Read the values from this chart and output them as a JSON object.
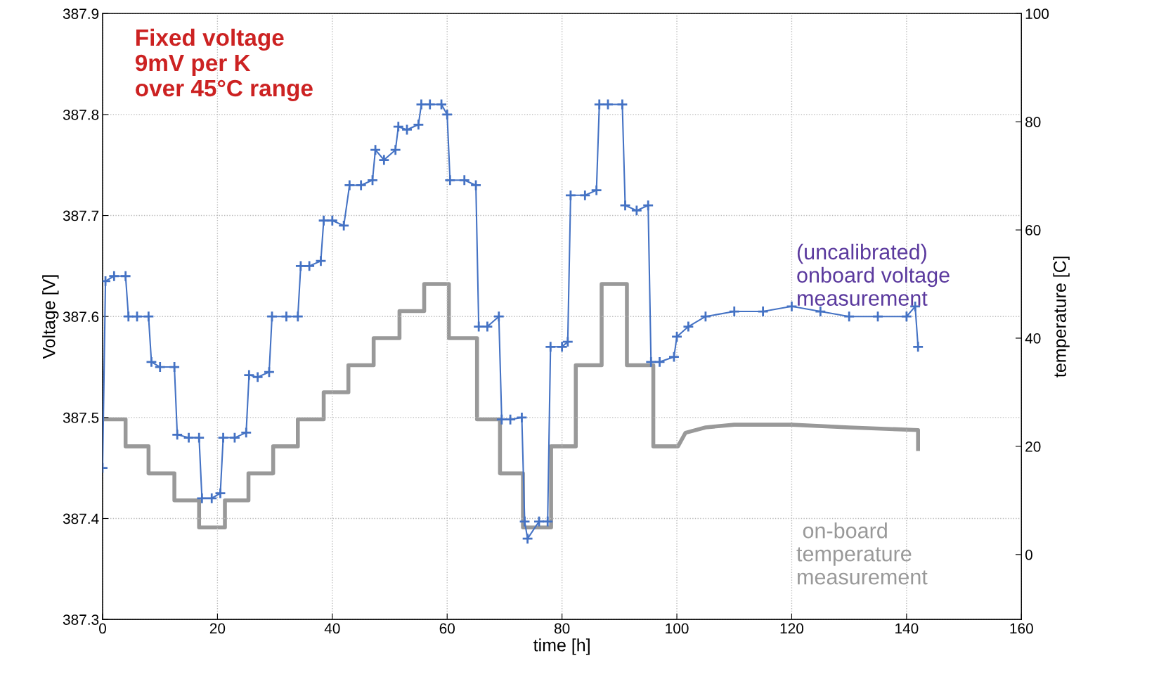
{
  "chart_data": {
    "type": "line",
    "xlabel": "time [h]",
    "ylabel": "Voltage [V]",
    "y2label": "temperature [C]",
    "xlim": [
      0,
      160
    ],
    "xticks": [
      0,
      20,
      40,
      60,
      80,
      100,
      120,
      140,
      160
    ],
    "ylim": [
      387.3,
      387.9
    ],
    "yticks": [
      387.3,
      387.4,
      387.5,
      387.6,
      387.7,
      387.8,
      387.9
    ],
    "y2lim": [
      -12,
      100
    ],
    "y2ticks": [
      0,
      20,
      40,
      60,
      80,
      100
    ],
    "grid": true,
    "legend": false,
    "annotations": [
      "Fixed voltage\n9mV per K\nover 45°C range"
    ],
    "series": [
      {
        "name": "(uncalibrated)\nonboard voltage\nmeasurement",
        "color": "#4472c4",
        "marker": "cross",
        "axis": "y",
        "x": [
          0,
          0.5,
          2,
          4,
          4.5,
          6,
          8,
          8.5,
          10,
          12.5,
          13,
          15,
          16.8,
          17.3,
          19,
          20.5,
          21,
          23,
          25,
          25.5,
          27,
          29,
          29.5,
          32,
          34,
          34.5,
          36,
          38,
          38.5,
          40,
          42,
          43,
          45,
          47,
          47.5,
          49,
          51,
          51.5,
          53,
          55,
          55.5,
          57,
          59,
          60,
          60.5,
          63,
          65,
          65.5,
          67,
          69,
          69.5,
          71,
          73,
          73.5,
          74,
          76,
          77.5,
          78,
          80,
          81,
          81.5,
          84,
          86,
          86.5,
          88,
          90.5,
          91,
          93,
          95,
          95.5,
          97,
          99.5,
          100,
          102,
          105,
          110,
          115,
          120,
          125,
          130,
          135,
          140,
          141.5,
          142
        ],
        "values": [
          387.45,
          387.635,
          387.64,
          387.64,
          387.6,
          387.6,
          387.6,
          387.555,
          387.55,
          387.55,
          387.483,
          387.48,
          387.48,
          387.42,
          387.42,
          387.425,
          387.48,
          387.48,
          387.485,
          387.542,
          387.54,
          387.545,
          387.6,
          387.6,
          387.6,
          387.65,
          387.65,
          387.655,
          387.695,
          387.695,
          387.69,
          387.73,
          387.73,
          387.735,
          387.765,
          387.755,
          387.765,
          387.788,
          387.785,
          387.79,
          387.81,
          387.81,
          387.81,
          387.8,
          387.735,
          387.735,
          387.73,
          387.59,
          387.59,
          387.6,
          387.498,
          387.498,
          387.5,
          387.397,
          387.38,
          387.397,
          387.397,
          387.57,
          387.57,
          387.575,
          387.72,
          387.72,
          387.725,
          387.81,
          387.81,
          387.81,
          387.71,
          387.705,
          387.71,
          387.555,
          387.555,
          387.56,
          387.58,
          387.59,
          387.6,
          387.605,
          387.605,
          387.61,
          387.605,
          387.6,
          387.6,
          387.6,
          387.61,
          387.57
        ]
      },
      {
        "name": " on-board\ntemperature\nmeasurement",
        "color": "#999999",
        "marker": "none",
        "axis": "y2",
        "x": [
          0,
          4,
          4,
          8,
          8,
          12.5,
          12.5,
          16.8,
          16.8,
          21.3,
          21.3,
          25.4,
          25.4,
          29.7,
          29.7,
          34,
          34,
          38.5,
          38.5,
          42.8,
          42.8,
          47.2,
          47.2,
          51.7,
          51.7,
          56,
          56,
          60.3,
          60.3,
          65.2,
          65.2,
          69.2,
          69.2,
          73.2,
          73.2,
          78.1,
          78.1,
          82.4,
          82.4,
          86.9,
          86.9,
          91.3,
          91.3,
          95.9,
          95.9,
          100.2,
          101.5,
          105,
          110,
          120,
          130,
          142,
          142
        ],
        "values": [
          25,
          25,
          20,
          20,
          15,
          15,
          10,
          10,
          5,
          5,
          10,
          10,
          15,
          15,
          20,
          20,
          25,
          25,
          30,
          30,
          35,
          35,
          40,
          40,
          45,
          45,
          50,
          50,
          40,
          40,
          25,
          25,
          15,
          15,
          5,
          5,
          20,
          20,
          35,
          35,
          50,
          50,
          35,
          35,
          20,
          20,
          22.5,
          23.5,
          24,
          24,
          23.5,
          23,
          19.5
        ]
      }
    ]
  }
}
